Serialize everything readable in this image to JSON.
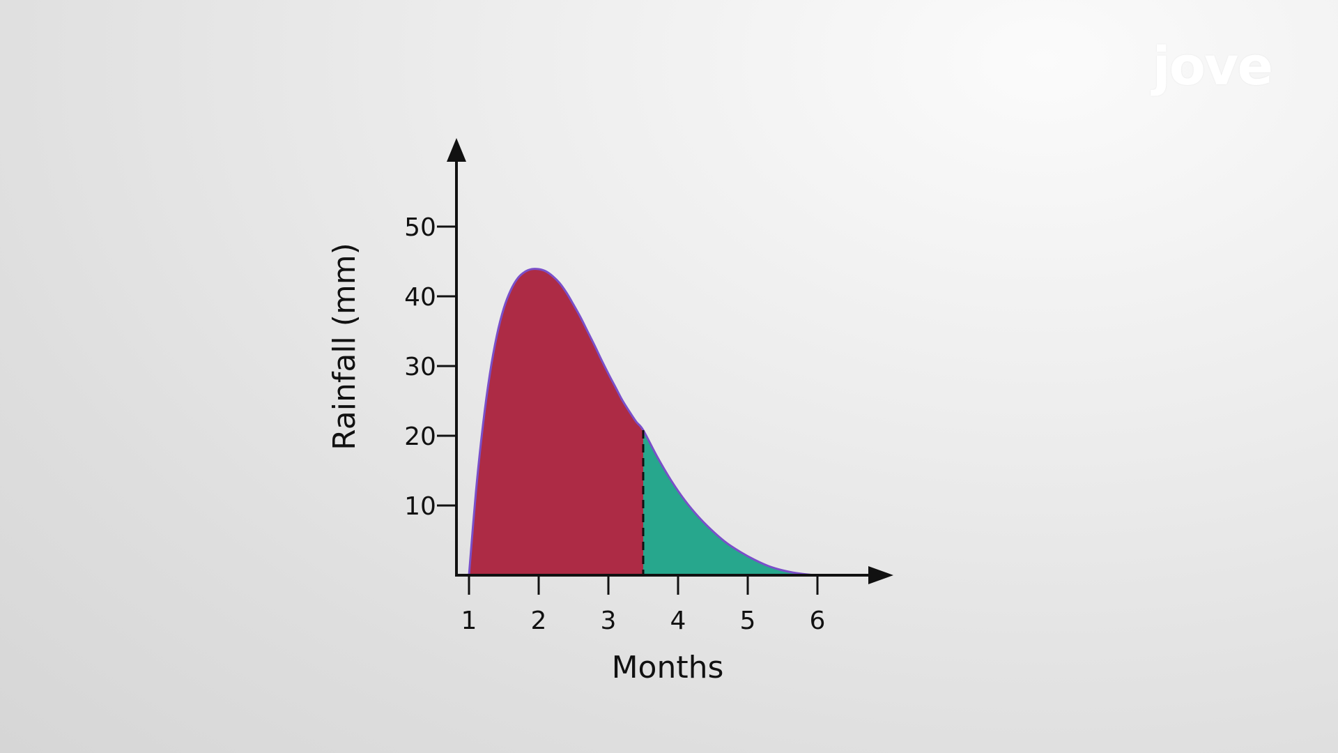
{
  "logo": {
    "text": "jove",
    "color": "#ffffff",
    "accent": "#6a7fd8"
  },
  "chart_data": {
    "type": "area",
    "title": "",
    "xlabel": "Months",
    "ylabel": "Rainfall (mm)",
    "xlim": [
      0.8,
      7.1
    ],
    "ylim": [
      0,
      59
    ],
    "x_ticks": [
      1,
      2,
      3,
      4,
      5,
      6
    ],
    "y_ticks": [
      10,
      20,
      30,
      40,
      50
    ],
    "grid": false,
    "legend": "none",
    "curve_color": "#7a4fc9",
    "divider_x": 3.5,
    "divider_style": "dashed",
    "series": [
      {
        "color": "#ad2b45",
        "x": [
          1.0,
          1.1,
          1.2,
          1.3,
          1.4,
          1.5,
          1.6,
          1.7,
          1.8,
          1.9,
          2.0,
          2.1,
          2.2,
          2.3,
          2.4,
          2.5,
          2.6,
          2.7,
          2.8,
          2.9,
          3.0,
          3.1,
          3.2,
          3.3,
          3.4,
          3.5
        ],
        "values": [
          0,
          12.0,
          21.5,
          28.9,
          34.4,
          38.3,
          40.9,
          42.6,
          43.5,
          43.9,
          43.9,
          43.6,
          42.9,
          41.9,
          40.5,
          38.8,
          37.0,
          35.0,
          33.0,
          30.9,
          28.9,
          27.0,
          25.1,
          23.5,
          22.0,
          20.8
        ]
      },
      {
        "color": "#27a78d",
        "x": [
          3.5,
          3.7,
          3.9,
          4.1,
          4.3,
          4.5,
          4.7,
          4.9,
          5.1,
          5.3,
          5.5,
          5.7,
          5.9,
          6.0
        ],
        "values": [
          20.8,
          17.0,
          13.6,
          10.7,
          8.3,
          6.3,
          4.6,
          3.3,
          2.2,
          1.3,
          0.7,
          0.3,
          0.06,
          0
        ]
      }
    ]
  }
}
